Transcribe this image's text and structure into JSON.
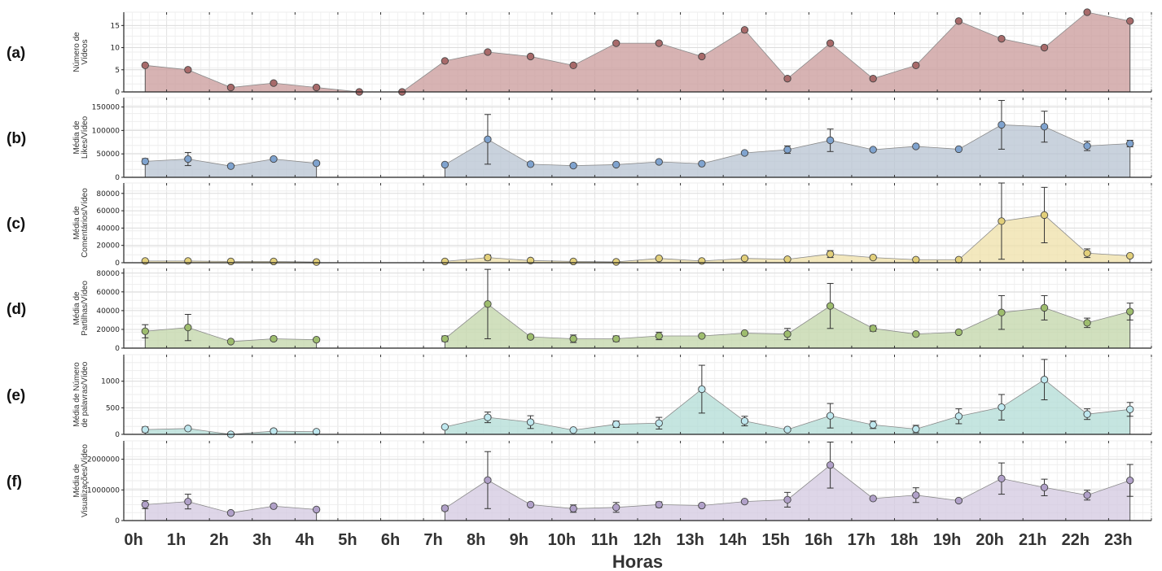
{
  "xlabel": "Horas",
  "x_tick_labels": [
    "0h",
    "1h",
    "2h",
    "3h",
    "4h",
    "5h",
    "6h",
    "7h",
    "8h",
    "9h",
    "10h",
    "11h",
    "12h",
    "13h",
    "14h",
    "15h",
    "16h",
    "17h",
    "18h",
    "19h",
    "20h",
    "21h",
    "22h",
    "23h"
  ],
  "chart_data": [
    {
      "type": "area",
      "panel_label": "(a)",
      "ylabel": [
        "Número de",
        "Vídeos"
      ],
      "ylim": [
        0,
        18
      ],
      "yticks": [
        0,
        5,
        10,
        15
      ],
      "ytick_labels": [
        "0",
        "5",
        "10",
        "15"
      ],
      "color": "#c99a9a",
      "marker_color": "#a86a6a",
      "x": [
        0.5,
        1.5,
        2.5,
        3.5,
        4.5,
        5.5,
        6.5,
        7.5,
        8.5,
        9.5,
        10.5,
        11.5,
        12.5,
        13.5,
        14.5,
        15.5,
        16.5,
        17.5,
        18.5,
        19.5,
        20.5,
        21.5,
        22.5,
        23.5
      ],
      "values": [
        6,
        5,
        1,
        2,
        1,
        0,
        0,
        7,
        9,
        8,
        6,
        11,
        11,
        8,
        14,
        3,
        11,
        3,
        6,
        16,
        12,
        10,
        18,
        16
      ],
      "errors": null,
      "segments": [
        [
          0,
          23
        ]
      ]
    },
    {
      "type": "area",
      "panel_label": "(b)",
      "ylabel": [
        "Média de",
        "Likes/Vídeo"
      ],
      "ylim": [
        0,
        170000
      ],
      "yticks": [
        0,
        50000,
        100000,
        150000
      ],
      "ytick_labels": [
        "0",
        "50000",
        "100000",
        "150000"
      ],
      "color": "#b7c3d2",
      "marker_color": "#7fa3cf",
      "x": [
        0.5,
        1.5,
        2.5,
        3.5,
        4.5,
        7.5,
        8.5,
        9.5,
        10.5,
        11.5,
        12.5,
        13.5,
        14.5,
        15.5,
        16.5,
        17.5,
        18.5,
        19.5,
        20.5,
        21.5,
        22.5,
        23.5
      ],
      "values": [
        34000,
        39000,
        24000,
        39000,
        30000,
        27000,
        81000,
        28000,
        25000,
        27000,
        33000,
        29000,
        52000,
        59000,
        79000,
        59000,
        66000,
        60000,
        112000,
        108000,
        67000,
        72000
      ],
      "errors": [
        6000,
        14000,
        0,
        0,
        0,
        0,
        53000,
        0,
        0,
        0,
        0,
        0,
        0,
        8000,
        24000,
        0,
        0,
        0,
        52000,
        33000,
        10000,
        7000
      ],
      "segments": [
        [
          0,
          4
        ],
        [
          5,
          21
        ]
      ]
    },
    {
      "type": "area",
      "panel_label": "(c)",
      "ylabel": [
        "Média de",
        "Comentários/Vídeo"
      ],
      "ylim": [
        0,
        92000
      ],
      "yticks": [
        0,
        20000,
        40000,
        60000,
        80000
      ],
      "ytick_labels": [
        "0",
        "20000",
        "40000",
        "60000",
        "80000"
      ],
      "color": "#efe0a8",
      "marker_color": "#e2cf7a",
      "x": [
        0.5,
        1.5,
        2.5,
        3.5,
        4.5,
        7.5,
        8.5,
        9.5,
        10.5,
        11.5,
        12.5,
        13.5,
        14.5,
        15.5,
        16.5,
        17.5,
        18.5,
        19.5,
        20.5,
        21.5,
        22.5,
        23.5
      ],
      "values": [
        2000,
        2000,
        1500,
        1500,
        800,
        1500,
        6000,
        2500,
        1500,
        1000,
        5000,
        2000,
        5000,
        4000,
        10000,
        6000,
        3500,
        3500,
        48000,
        55000,
        11000,
        8000
      ],
      "errors": [
        0,
        0,
        0,
        0,
        0,
        0,
        3000,
        0,
        0,
        0,
        0,
        0,
        0,
        0,
        4000,
        0,
        0,
        0,
        44000,
        32000,
        5000,
        0
      ],
      "segments": [
        [
          0,
          4
        ],
        [
          5,
          21
        ]
      ]
    },
    {
      "type": "area",
      "panel_label": "(d)",
      "ylabel": [
        "Média de",
        "Partilhas/Vídeo"
      ],
      "ylim": [
        0,
        85000
      ],
      "yticks": [
        0,
        20000,
        40000,
        60000,
        80000
      ],
      "ytick_labels": [
        "0",
        "20000",
        "40000",
        "60000",
        "80000"
      ],
      "color": "#c2d5a8",
      "marker_color": "#9ebd6e",
      "x": [
        0.5,
        1.5,
        2.5,
        3.5,
        4.5,
        7.5,
        8.5,
        9.5,
        10.5,
        11.5,
        12.5,
        13.5,
        14.5,
        15.5,
        16.5,
        17.5,
        18.5,
        19.5,
        20.5,
        21.5,
        22.5,
        23.5
      ],
      "values": [
        18000,
        22000,
        7000,
        10000,
        9000,
        10000,
        47000,
        12000,
        10000,
        10000,
        13000,
        13000,
        16000,
        15000,
        45000,
        21000,
        15000,
        17000,
        38000,
        43000,
        27000,
        39000
      ],
      "errors": [
        7000,
        14000,
        0,
        2000,
        0,
        3000,
        37000,
        2000,
        4000,
        3000,
        4000,
        0,
        0,
        6000,
        24000,
        3000,
        0,
        0,
        18000,
        13000,
        5000,
        9000
      ],
      "segments": [
        [
          0,
          4
        ],
        [
          5,
          21
        ]
      ]
    },
    {
      "type": "area",
      "panel_label": "(e)",
      "ylabel": [
        "Média de Número",
        "de palavras/Vídeo"
      ],
      "ylim": [
        0,
        1500
      ],
      "yticks": [
        0,
        500,
        1000
      ],
      "ytick_labels": [
        "0",
        "500",
        "1000"
      ],
      "color": "#b2dcd5",
      "marker_color": "#bfe8ef",
      "x": [
        0.5,
        1.5,
        2.5,
        3.5,
        4.5,
        7.5,
        8.5,
        9.5,
        10.5,
        11.5,
        12.5,
        13.5,
        14.5,
        15.5,
        16.5,
        17.5,
        18.5,
        19.5,
        20.5,
        21.5,
        22.5,
        23.5
      ],
      "values": [
        90,
        110,
        0,
        60,
        50,
        140,
        320,
        230,
        80,
        190,
        210,
        850,
        250,
        90,
        350,
        180,
        100,
        340,
        510,
        1030,
        380,
        470
      ],
      "errors": [
        50,
        0,
        0,
        40,
        0,
        0,
        100,
        120,
        0,
        60,
        110,
        450,
        90,
        0,
        230,
        70,
        70,
        140,
        240,
        380,
        100,
        130
      ],
      "segments": [
        [
          0,
          4
        ],
        [
          5,
          21
        ]
      ]
    },
    {
      "type": "area",
      "panel_label": "(f)",
      "ylabel": [
        "Média de",
        "Visualizações/Vídeo"
      ],
      "ylim": [
        0,
        2600000
      ],
      "yticks": [
        0,
        1000000,
        2000000
      ],
      "ytick_labels": [
        "0",
        "1000000",
        "2000000"
      ],
      "color": "#d3c8e0",
      "marker_color": "#b1a1c9",
      "x": [
        0.5,
        1.5,
        2.5,
        3.5,
        4.5,
        7.5,
        8.5,
        9.5,
        10.5,
        11.5,
        12.5,
        13.5,
        14.5,
        15.5,
        16.5,
        17.5,
        18.5,
        19.5,
        20.5,
        21.5,
        22.5,
        23.5
      ],
      "values": [
        520000,
        620000,
        250000,
        470000,
        360000,
        400000,
        1320000,
        520000,
        390000,
        430000,
        520000,
        490000,
        620000,
        680000,
        1810000,
        720000,
        830000,
        650000,
        1370000,
        1080000,
        830000,
        1310000
      ],
      "errors": [
        130000,
        240000,
        0,
        0,
        0,
        80000,
        930000,
        0,
        120000,
        160000,
        90000,
        0,
        0,
        240000,
        750000,
        0,
        240000,
        0,
        510000,
        270000,
        160000,
        520000
      ],
      "segments": [
        [
          0,
          4
        ],
        [
          5,
          21
        ]
      ]
    }
  ]
}
